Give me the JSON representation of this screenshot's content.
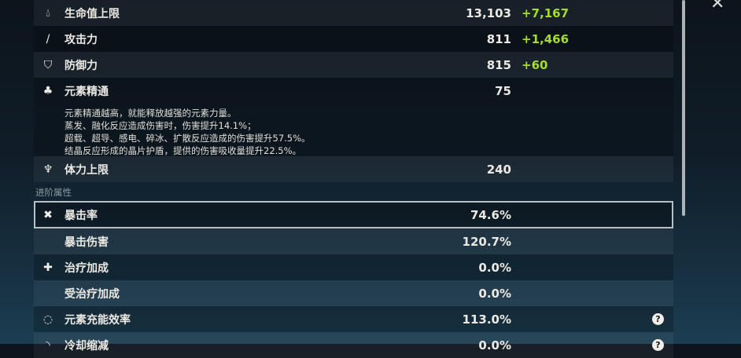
{
  "base_stats": [
    {
      "icon": "hp-drop-icon",
      "label": "生命值上限",
      "value": "13,103",
      "bonus": "+7,167"
    },
    {
      "icon": "sword-icon",
      "label": "攻击力",
      "value": "811",
      "bonus": "+1,466"
    },
    {
      "icon": "shield-icon",
      "label": "防御力",
      "value": "815",
      "bonus": "+60"
    },
    {
      "icon": "elemental-mastery-icon",
      "label": "元素精通",
      "value": "75",
      "description": [
        "元素精通越高，就能释放越强的元素力量。",
        "蒸发、融化反应造成伤害时，伤害提升14.1%；",
        "超载、超导、感电、碎冰、扩散反应造成的伤害提升57.5%。",
        "结晶反应形成的晶片护盾，提供的伤害吸收量提升22.5%。"
      ]
    },
    {
      "icon": "stamina-icon",
      "label": "体力上限",
      "value": "240"
    }
  ],
  "advanced_section_title": "进阶属性",
  "advanced_stats": [
    {
      "icon": "crit-star-icon",
      "label": "暴击率",
      "value": "74.6%",
      "selected": true
    },
    {
      "label": "暴击伤害",
      "value": "120.7%"
    },
    {
      "icon": "healing-cross-icon",
      "label": "治疗加成",
      "value": "0.0%"
    },
    {
      "label": "受治疗加成",
      "value": "0.0%"
    },
    {
      "icon": "energy-recharge-icon",
      "label": "元素充能效率",
      "value": "113.0%",
      "help": "?"
    },
    {
      "icon": "cooldown-icon",
      "label": "冷却缩减",
      "value": "0.0%",
      "help": "?"
    }
  ],
  "colors": {
    "bonus": "#a6dd2c",
    "background": "#101d28"
  }
}
